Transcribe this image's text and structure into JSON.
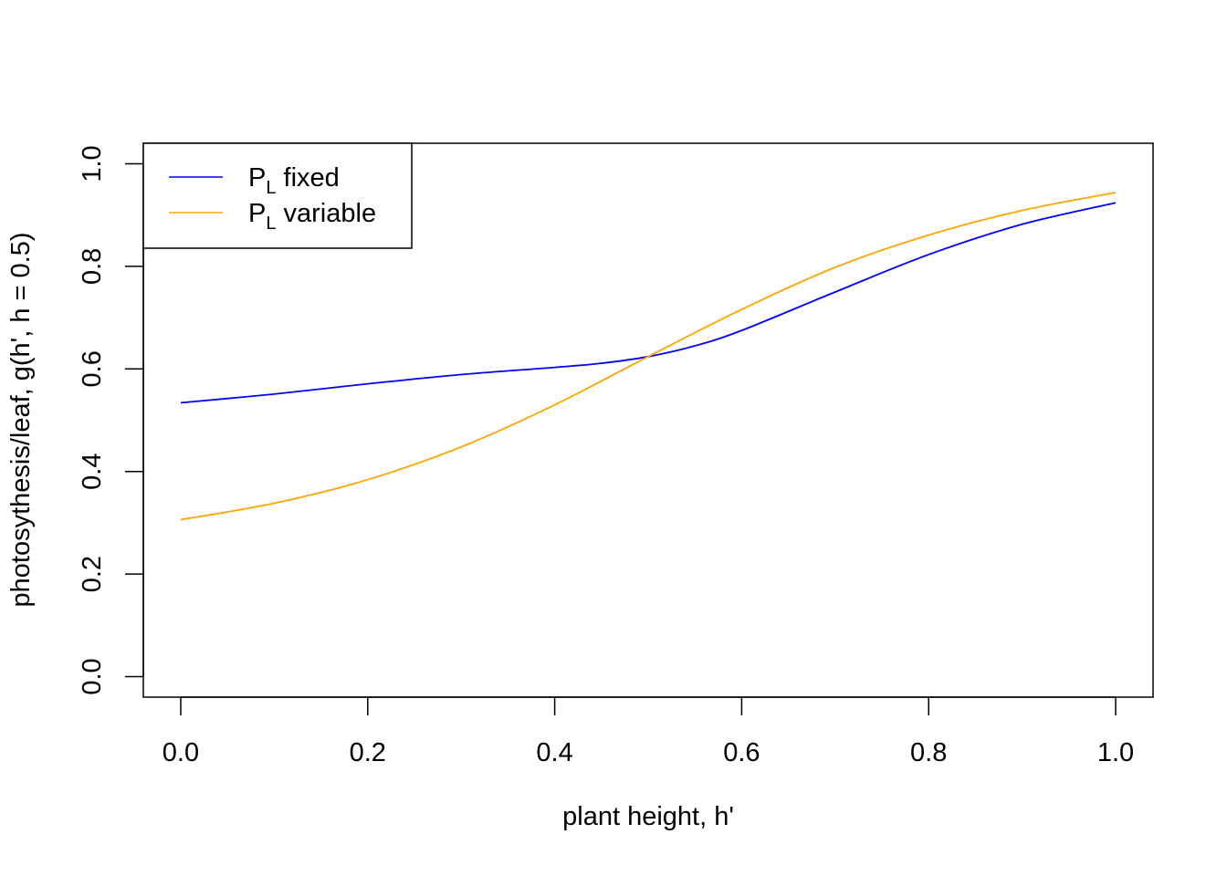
{
  "chart_data": {
    "type": "line",
    "xlabel": "plant height, h'",
    "ylabel": "photosythesis/leaf, g(h', h = 0.5)",
    "xlim": [
      -0.04,
      1.04
    ],
    "ylim": [
      -0.04,
      1.04
    ],
    "x_ticks": [
      "0.0",
      "0.2",
      "0.4",
      "0.6",
      "0.8",
      "1.0"
    ],
    "y_ticks": [
      "0.0",
      "0.2",
      "0.4",
      "0.6",
      "0.8",
      "1.0"
    ],
    "grid": false,
    "legend": {
      "position": "top-left",
      "entries": [
        {
          "main": "P",
          "sub": "L",
          "rest": " fixed",
          "color": "#0000ff"
        },
        {
          "main": "P",
          "sub": "L",
          "rest": " variable",
          "color": "#ffa500"
        }
      ]
    },
    "series": [
      {
        "name": "PL fixed",
        "color": "#0000ff",
        "x": [
          0.0,
          0.1,
          0.2,
          0.3,
          0.4,
          0.45,
          0.5,
          0.55,
          0.6,
          0.7,
          0.8,
          0.9,
          1.0
        ],
        "y": [
          0.534,
          0.551,
          0.571,
          0.589,
          0.603,
          0.611,
          0.624,
          0.645,
          0.675,
          0.75,
          0.823,
          0.882,
          0.924
        ]
      },
      {
        "name": "PL variable",
        "color": "#ffa500",
        "x": [
          0.0,
          0.1,
          0.2,
          0.3,
          0.4,
          0.5,
          0.6,
          0.7,
          0.8,
          0.9,
          1.0
        ],
        "y": [
          0.306,
          0.338,
          0.384,
          0.448,
          0.53,
          0.624,
          0.716,
          0.798,
          0.861,
          0.909,
          0.944
        ]
      }
    ]
  }
}
